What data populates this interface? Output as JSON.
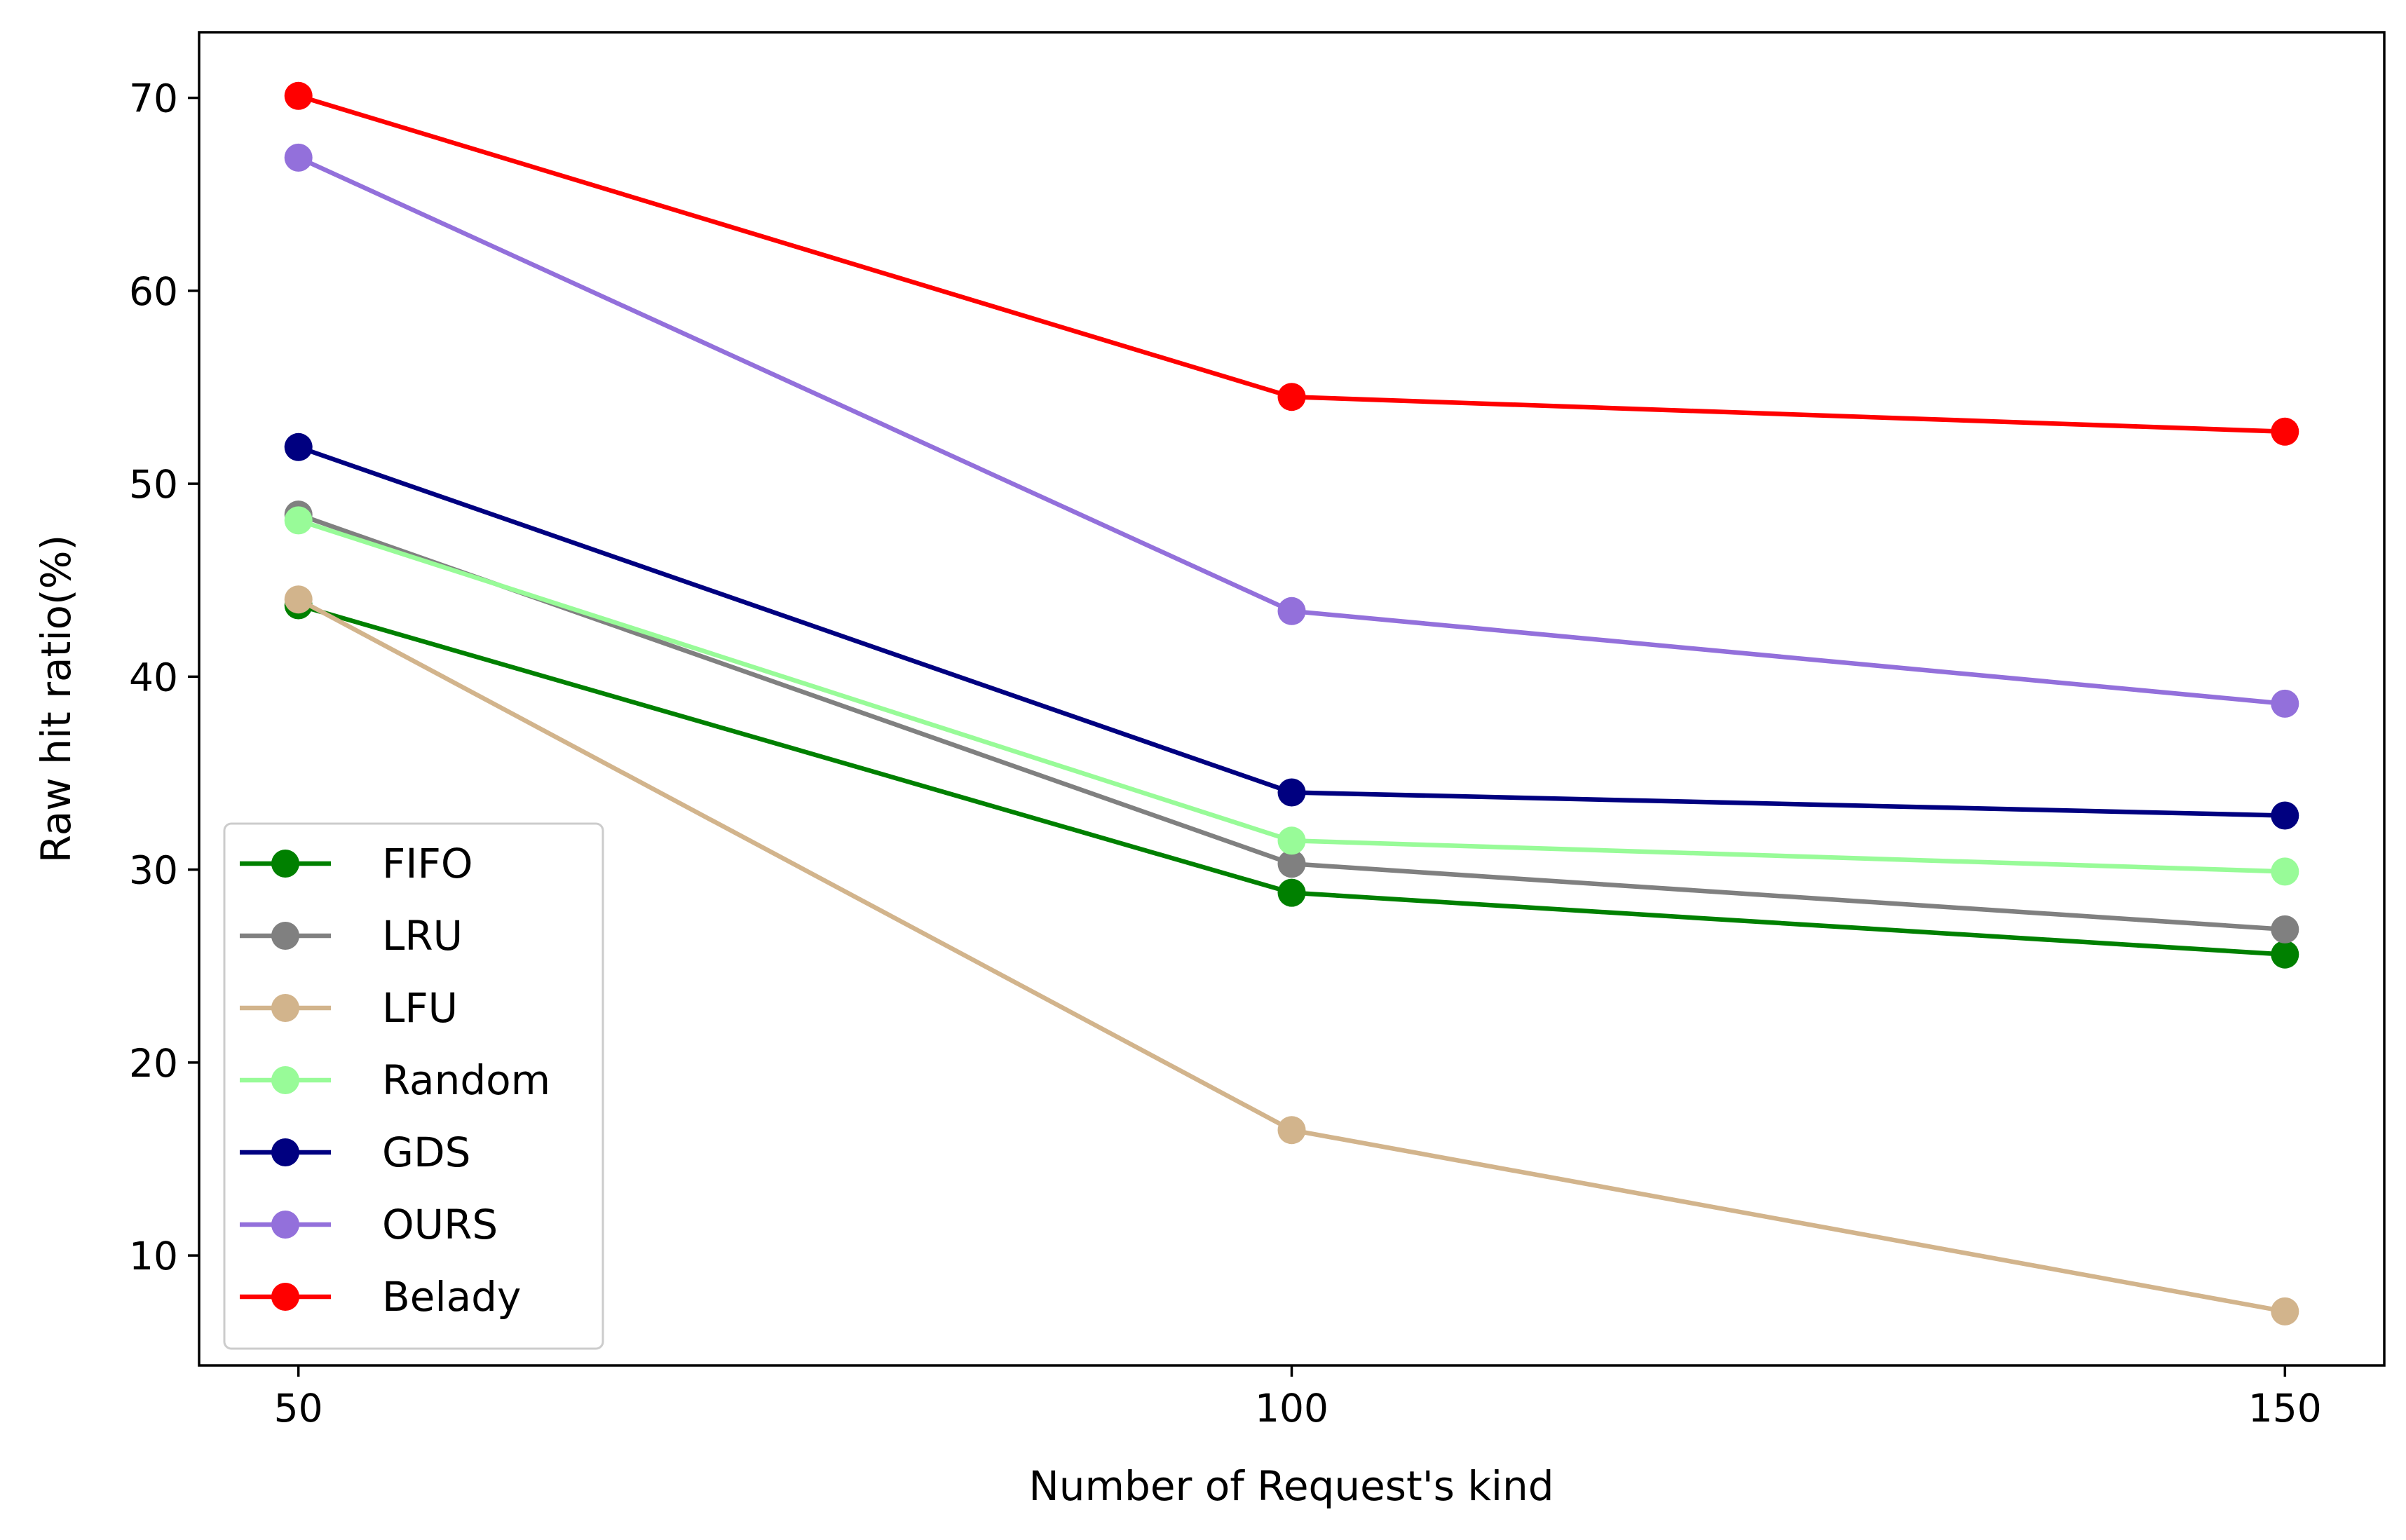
{
  "chart_data": {
    "type": "line",
    "xlabel": "Number of Request's kind",
    "ylabel": "Raw hit ratio(%)",
    "x": [
      50,
      100,
      150
    ],
    "xlim": [
      45,
      155
    ],
    "ylim": [
      4.3,
      73.4
    ],
    "xticks": [
      50,
      100,
      150
    ],
    "yticks": [
      10,
      20,
      30,
      40,
      50,
      60,
      70
    ],
    "grid": false,
    "legend_position": "lower-left",
    "series": [
      {
        "name": "FIFO",
        "color": "#008000",
        "values": [
          43.7,
          28.8,
          25.6
        ]
      },
      {
        "name": "LRU",
        "color": "#808080",
        "values": [
          48.4,
          30.3,
          26.9
        ]
      },
      {
        "name": "LFU",
        "color": "#d2b48c",
        "values": [
          44.0,
          16.5,
          7.1
        ]
      },
      {
        "name": "Random",
        "color": "#98fb98",
        "values": [
          48.1,
          31.5,
          29.9
        ]
      },
      {
        "name": "GDS",
        "color": "#000080",
        "values": [
          51.9,
          34.0,
          32.8
        ]
      },
      {
        "name": "OURS",
        "color": "#9370db",
        "values": [
          66.9,
          43.4,
          38.6
        ]
      },
      {
        "name": "Belady",
        "color": "#ff0000",
        "values": [
          70.1,
          54.5,
          52.7
        ]
      }
    ]
  }
}
